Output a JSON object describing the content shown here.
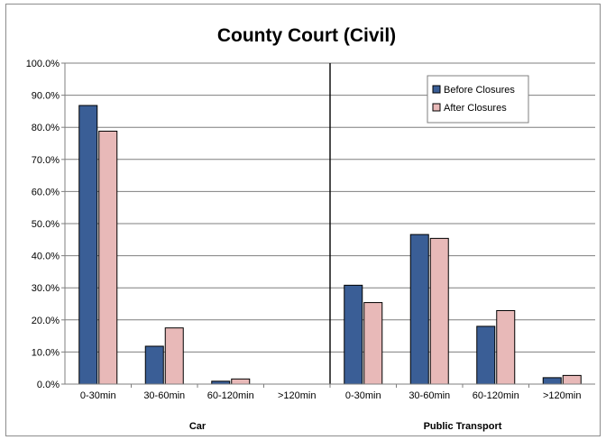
{
  "chart_data": {
    "type": "bar",
    "title": "County Court (Civil)",
    "ylim": [
      0,
      100
    ],
    "yticks": [
      "0.0%",
      "10.0%",
      "20.0%",
      "30.0%",
      "40.0%",
      "50.0%",
      "60.0%",
      "70.0%",
      "80.0%",
      "90.0%",
      "100.0%"
    ],
    "grid": true,
    "legend_position": "top-right",
    "groups": [
      {
        "label": "Car",
        "categories": [
          "0-30min",
          "30-60min",
          "60-120min",
          ">120min"
        ],
        "series": [
          {
            "name": "Before Closures",
            "values": [
              86.8,
              11.8,
              0.9,
              0.0
            ]
          },
          {
            "name": "After Closures",
            "values": [
              78.8,
              17.5,
              1.6,
              0.0
            ]
          }
        ]
      },
      {
        "label": "Public Transport",
        "categories": [
          "0-30min",
          "30-60min",
          "60-120min",
          ">120min"
        ],
        "series": [
          {
            "name": "Before Closures",
            "values": [
              30.8,
              46.6,
              18.0,
              2.0
            ]
          },
          {
            "name": "After Closures",
            "values": [
              25.4,
              45.4,
              22.9,
              2.7
            ]
          }
        ]
      }
    ],
    "colors": {
      "Before Closures": "#3a5e96",
      "After Closures": "#e8b9b8"
    }
  }
}
